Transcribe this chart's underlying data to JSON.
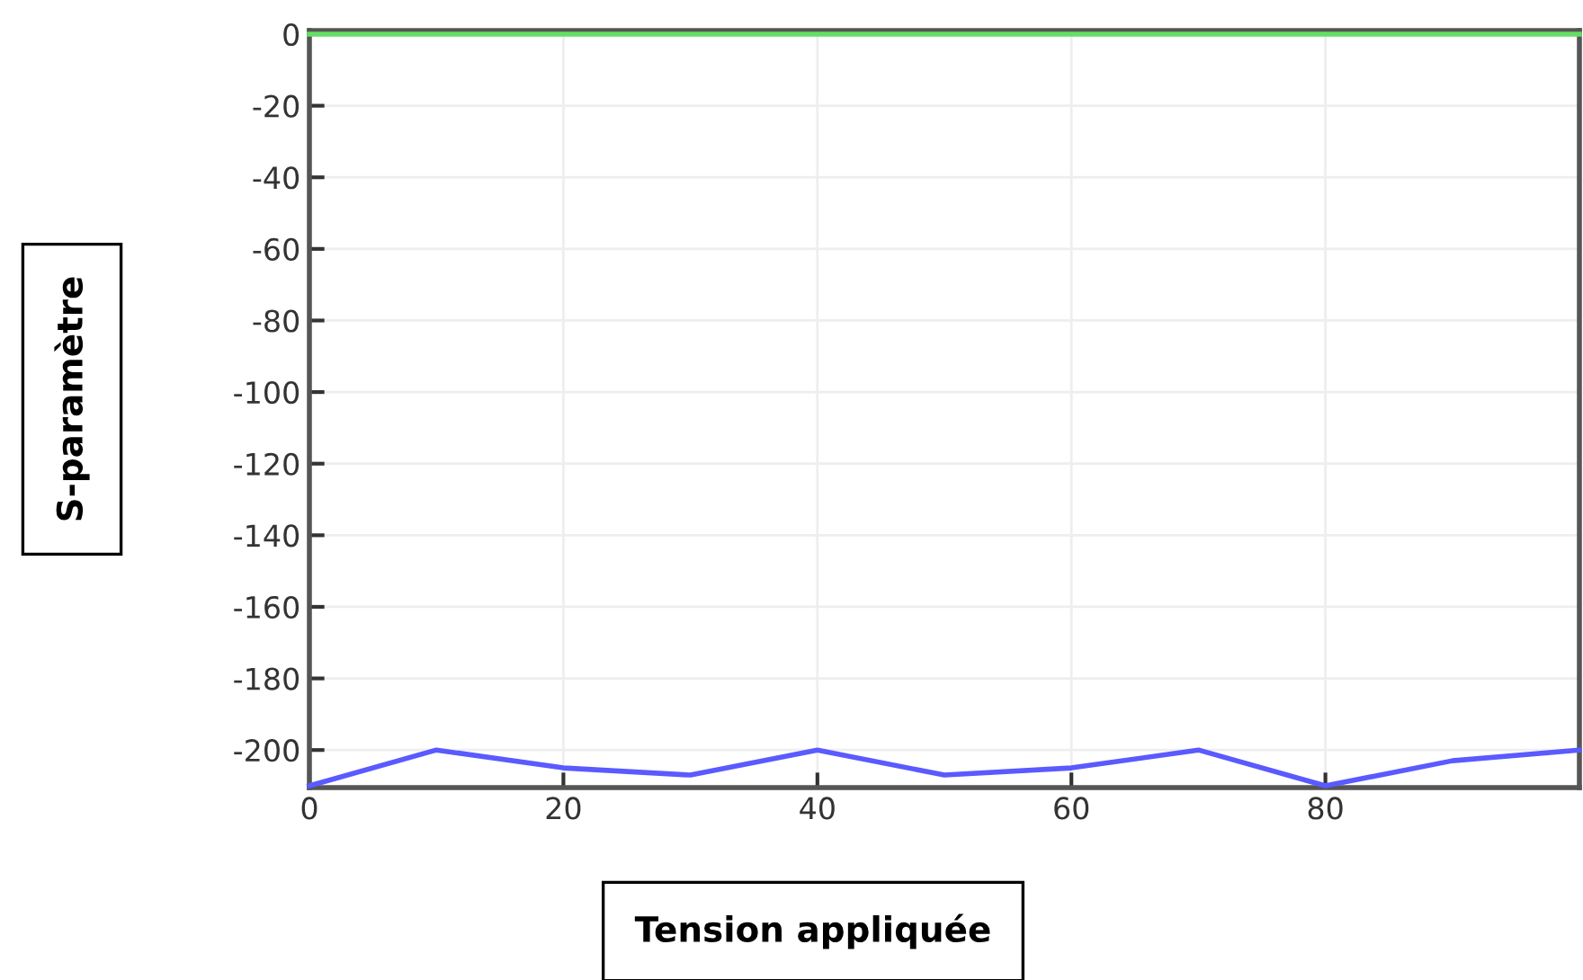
{
  "chart_data": {
    "type": "line",
    "xlabel": "Tension appliquée",
    "ylabel": "S-paramètre",
    "x": [
      0,
      10,
      20,
      30,
      40,
      50,
      60,
      70,
      80,
      90,
      100
    ],
    "series": [
      {
        "color": "#5a5aff",
        "values": [
          -210,
          -200,
          -205,
          -207,
          -200,
          -207,
          -205,
          -200,
          -210,
          -203,
          -200
        ]
      },
      {
        "color": "#66dd66",
        "values": [
          0,
          0,
          0,
          0,
          0,
          0,
          0,
          0,
          0,
          0,
          0
        ]
      }
    ],
    "xlim": [
      0,
      100
    ],
    "xticks": [
      0,
      20,
      40,
      60,
      80
    ],
    "ylim": [
      -210.5,
      1
    ],
    "yticks": [
      -200,
      -180,
      -160,
      -140,
      -120,
      -100,
      -80,
      -60,
      -40,
      -20,
      0
    ],
    "grid": true,
    "marker": "none",
    "line_style": "solid"
  }
}
